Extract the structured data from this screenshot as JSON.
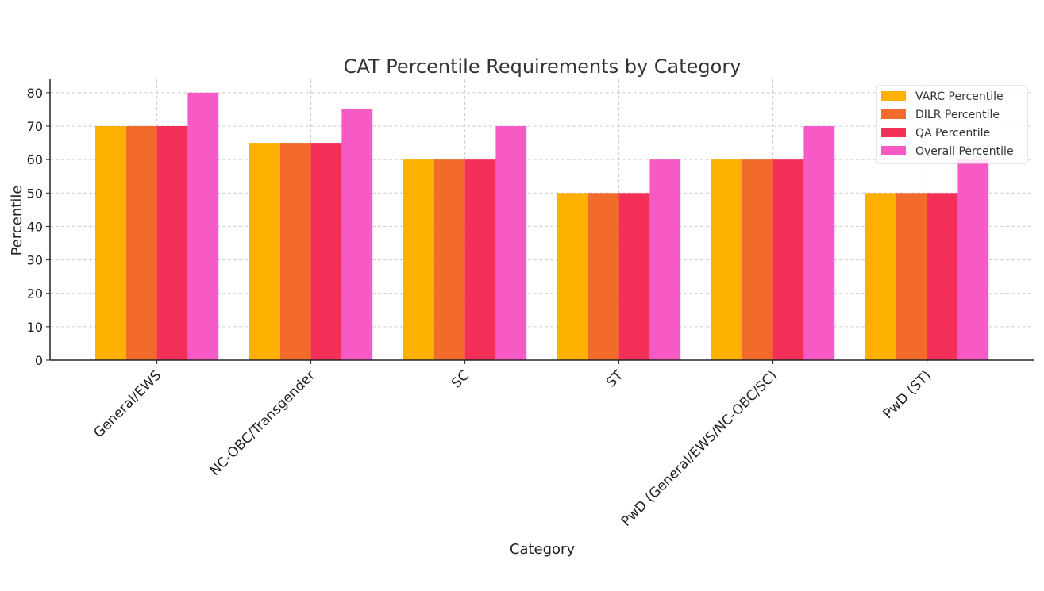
{
  "chart_data": {
    "type": "bar",
    "title": "CAT Percentile Requirements by Category",
    "xlabel": "Category",
    "ylabel": "Percentile",
    "ylim": [
      0,
      84
    ],
    "yticks": [
      0,
      10,
      20,
      30,
      40,
      50,
      60,
      70,
      80
    ],
    "grid": true,
    "legend_position": "top-right",
    "categories": [
      "General/EWS",
      "NC-OBC/Transgender",
      "SC",
      "ST",
      "PwD (General/EWS/NC-OBC/SC)",
      "PwD (ST)"
    ],
    "series": [
      {
        "name": "VARC Percentile",
        "color": "#FDB000",
        "values": [
          70,
          65,
          60,
          50,
          60,
          50
        ]
      },
      {
        "name": "DILR Percentile",
        "color": "#F26B2B",
        "values": [
          70,
          65,
          60,
          50,
          60,
          50
        ]
      },
      {
        "name": "QA Percentile",
        "color": "#F43058",
        "values": [
          70,
          65,
          60,
          50,
          60,
          50
        ]
      },
      {
        "name": "Overall Percentile",
        "color": "#F75AC5",
        "values": [
          80,
          75,
          70,
          60,
          70,
          60
        ]
      }
    ]
  }
}
